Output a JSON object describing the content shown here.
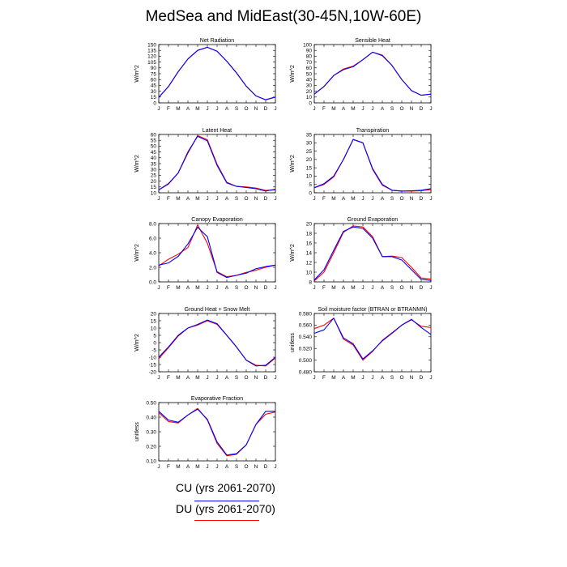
{
  "figure": {
    "title": "MedSea and MidEast(30-45N,10W-60E)"
  },
  "legend": [
    {
      "name": "CU (yrs 2061-2070)",
      "color": "#0000ff"
    },
    {
      "name": "DU (yrs 2061-2070)",
      "color": "#ff0000"
    }
  ],
  "chart_data": [
    {
      "type": "line",
      "title": "Net Radiation",
      "ylabel": "W/m^2",
      "categories": [
        "J",
        "F",
        "M",
        "A",
        "M",
        "J",
        "J",
        "A",
        "S",
        "O",
        "N",
        "D",
        "J"
      ],
      "ylim": [
        0,
        150
      ],
      "yticks": [
        "0",
        "15",
        "30",
        "45",
        "60",
        "75",
        "90",
        "105",
        "120",
        "135",
        "150"
      ],
      "yticks_values": [
        0,
        15,
        30,
        45,
        60,
        75,
        90,
        105,
        120,
        135,
        150
      ],
      "series": [
        {
          "name": "CU (yrs 2061-2070)",
          "color": "#0000ff",
          "values": [
            14,
            42,
            80,
            113,
            135,
            143,
            133,
            107,
            77,
            43,
            18,
            8,
            15
          ]
        },
        {
          "name": "DU (yrs 2061-2070)",
          "color": "#ff0000",
          "values": [
            14,
            42,
            80,
            113,
            135,
            143,
            133,
            107,
            77,
            43,
            18,
            8,
            15
          ]
        }
      ]
    },
    {
      "type": "line",
      "title": "Sensible Heat",
      "ylabel": "W/m^2",
      "categories": [
        "J",
        "F",
        "M",
        "A",
        "M",
        "J",
        "J",
        "A",
        "S",
        "O",
        "N",
        "D",
        "J"
      ],
      "ylim": [
        0,
        100
      ],
      "yticks": [
        "0",
        "10",
        "20",
        "30",
        "40",
        "50",
        "60",
        "70",
        "80",
        "90",
        "100"
      ],
      "yticks_values": [
        0,
        10,
        20,
        30,
        40,
        50,
        60,
        70,
        80,
        90,
        100
      ],
      "series": [
        {
          "name": "CU (yrs 2061-2070)",
          "color": "#0000ff",
          "values": [
            15,
            28,
            47,
            57,
            62,
            74,
            87,
            81,
            64,
            40,
            21,
            13,
            15
          ]
        },
        {
          "name": "DU (yrs 2061-2070)",
          "color": "#ff0000",
          "values": [
            15,
            28,
            47,
            58,
            63,
            74,
            87,
            82,
            64,
            40,
            21,
            13,
            15
          ]
        }
      ]
    },
    {
      "type": "line",
      "title": "Latent Heat",
      "ylabel": "W/m^2",
      "categories": [
        "J",
        "F",
        "M",
        "A",
        "M",
        "J",
        "J",
        "A",
        "S",
        "O",
        "N",
        "D",
        "J"
      ],
      "ylim": [
        10,
        60
      ],
      "yticks": [
        "10",
        "15",
        "20",
        "25",
        "30",
        "35",
        "40",
        "45",
        "50",
        "55",
        "60"
      ],
      "yticks_values": [
        10,
        15,
        20,
        25,
        30,
        35,
        40,
        45,
        50,
        55,
        60
      ],
      "series": [
        {
          "name": "CU (yrs 2061-2070)",
          "color": "#0000ff",
          "values": [
            12.5,
            17.5,
            27,
            45,
            58.5,
            54.5,
            33.5,
            18.5,
            15.5,
            14.5,
            13.5,
            11.5,
            13
          ]
        },
        {
          "name": "DU (yrs 2061-2070)",
          "color": "#ff0000",
          "values": [
            12.5,
            18,
            27,
            44,
            59,
            55.5,
            34.5,
            19,
            15.5,
            15,
            14,
            12,
            12.5
          ]
        }
      ]
    },
    {
      "type": "line",
      "title": "Transpiration",
      "ylabel": "W/m^2",
      "categories": [
        "J",
        "F",
        "M",
        "A",
        "M",
        "J",
        "J",
        "A",
        "S",
        "O",
        "N",
        "D",
        "J"
      ],
      "ylim": [
        0,
        35
      ],
      "yticks": [
        "0",
        "5",
        "10",
        "15",
        "20",
        "25",
        "30",
        "35"
      ],
      "yticks_values": [
        0,
        5,
        10,
        15,
        20,
        25,
        30,
        35
      ],
      "series": [
        {
          "name": "CU (yrs 2061-2070)",
          "color": "#0000ff",
          "values": [
            3,
            5.5,
            10,
            20,
            32,
            30,
            14.5,
            5,
            1.5,
            1,
            1.2,
            1.5,
            2.5
          ]
        },
        {
          "name": "DU (yrs 2061-2070)",
          "color": "#ff0000",
          "values": [
            3,
            5,
            9.5,
            20,
            32,
            30,
            14,
            4.5,
            1.5,
            1,
            1,
            1.2,
            2
          ]
        }
      ]
    },
    {
      "type": "line",
      "title": "Canopy Evaporation",
      "ylabel": "W/m^2",
      "categories": [
        "J",
        "F",
        "M",
        "A",
        "M",
        "J",
        "J",
        "A",
        "S",
        "O",
        "N",
        "D",
        "J"
      ],
      "ylim": [
        0,
        8
      ],
      "yticks": [
        "0.0",
        "2.0",
        "4.0",
        "6.0",
        "8.0"
      ],
      "yticks_values": [
        0,
        2,
        4,
        6,
        8
      ],
      "series": [
        {
          "name": "CU (yrs 2061-2070)",
          "color": "#0000ff",
          "values": [
            2.3,
            2.6,
            3.5,
            5.2,
            7.5,
            6.2,
            1.3,
            0.6,
            0.9,
            1.2,
            1.8,
            2.1,
            2.3
          ]
        },
        {
          "name": "DU (yrs 2061-2070)",
          "color": "#ff0000",
          "values": [
            2.2,
            3.1,
            3.8,
            4.7,
            7.8,
            5.3,
            1.4,
            0.7,
            0.9,
            1.3,
            1.6,
            2.0,
            2.3
          ]
        }
      ]
    },
    {
      "type": "line",
      "title": "Ground Evaporation",
      "ylabel": "W/m^2",
      "categories": [
        "J",
        "F",
        "M",
        "A",
        "M",
        "J",
        "J",
        "A",
        "S",
        "O",
        "N",
        "D",
        "J"
      ],
      "ylim": [
        8,
        20
      ],
      "yticks": [
        "8",
        "10",
        "12",
        "14",
        "16",
        "18",
        "20"
      ],
      "yticks_values": [
        8,
        10,
        12,
        14,
        16,
        18,
        20
      ],
      "series": [
        {
          "name": "CU (yrs 2061-2070)",
          "color": "#0000ff",
          "values": [
            8.4,
            10.5,
            14.5,
            18.4,
            19.3,
            19,
            17,
            13.2,
            13.2,
            12.5,
            10.5,
            8.5,
            8.3
          ]
        },
        {
          "name": "DU (yrs 2061-2070)",
          "color": "#ff0000",
          "values": [
            8.2,
            10,
            14,
            18.2,
            19.5,
            19.3,
            17.3,
            13.2,
            13.3,
            13,
            11,
            8.8,
            8.6
          ]
        }
      ]
    },
    {
      "type": "line",
      "title": "Ground Heat + Snow Melt",
      "ylabel": "W/m^2",
      "categories": [
        "J",
        "F",
        "M",
        "A",
        "M",
        "J",
        "J",
        "A",
        "S",
        "O",
        "N",
        "D",
        "J"
      ],
      "ylim": [
        -20,
        20
      ],
      "yticks": [
        "-20",
        "-15",
        "-10",
        "-5",
        "0",
        "5",
        "10",
        "15",
        "20"
      ],
      "yticks_values": [
        -20,
        -15,
        -10,
        -5,
        0,
        5,
        10,
        15,
        20
      ],
      "series": [
        {
          "name": "CU (yrs 2061-2070)",
          "color": "#0000ff",
          "values": [
            -10,
            -3,
            5,
            10,
            12.5,
            15.5,
            13,
            5,
            -3,
            -12,
            -16,
            -15.5,
            -10
          ]
        },
        {
          "name": "DU (yrs 2061-2070)",
          "color": "#ff0000",
          "values": [
            -11,
            -3.5,
            4.5,
            10,
            12,
            15,
            12.5,
            5,
            -3,
            -12,
            -15.5,
            -16,
            -10.5
          ]
        }
      ]
    },
    {
      "type": "line",
      "title": "Soil moisture factor (BTRAN or BTRANMN)",
      "ylabel": "unitless",
      "categories": [
        "J",
        "F",
        "M",
        "A",
        "M",
        "J",
        "J",
        "A",
        "S",
        "O",
        "N",
        "D",
        "J"
      ],
      "ylim": [
        0.48,
        0.58
      ],
      "yticks": [
        "0.480",
        "0.500",
        "0.520",
        "0.540",
        "0.560",
        "0.580"
      ],
      "yticks_values": [
        0.48,
        0.5,
        0.52,
        0.54,
        0.56,
        0.58
      ],
      "series": [
        {
          "name": "CU (yrs 2061-2070)",
          "color": "#0000ff",
          "values": [
            0.546,
            0.552,
            0.572,
            0.538,
            0.528,
            0.502,
            0.516,
            0.533,
            0.546,
            0.56,
            0.57,
            0.556,
            0.544
          ]
        },
        {
          "name": "DU (yrs 2061-2070)",
          "color": "#ff0000",
          "values": [
            0.554,
            0.56,
            0.572,
            0.536,
            0.526,
            0.5,
            0.515,
            0.534,
            0.547,
            0.56,
            0.569,
            0.558,
            0.556
          ]
        }
      ]
    },
    {
      "type": "line",
      "title": "Evaporative Fraction",
      "ylabel": "unitless",
      "categories": [
        "J",
        "F",
        "M",
        "A",
        "M",
        "J",
        "J",
        "A",
        "S",
        "O",
        "N",
        "D",
        "J"
      ],
      "ylim": [
        0.1,
        0.5
      ],
      "yticks": [
        "0.10",
        "0.20",
        "0.30",
        "0.40",
        "0.50"
      ],
      "yticks_values": [
        0.1,
        0.2,
        0.3,
        0.4,
        0.5
      ],
      "series": [
        {
          "name": "CU (yrs 2061-2070)",
          "color": "#0000ff",
          "values": [
            0.44,
            0.38,
            0.365,
            0.415,
            0.455,
            0.385,
            0.23,
            0.14,
            0.15,
            0.21,
            0.35,
            0.44,
            0.44
          ]
        },
        {
          "name": "DU (yrs 2061-2070)",
          "color": "#ff0000",
          "values": [
            0.43,
            0.37,
            0.36,
            0.415,
            0.46,
            0.38,
            0.22,
            0.135,
            0.145,
            0.21,
            0.35,
            0.42,
            0.435
          ]
        }
      ]
    }
  ]
}
